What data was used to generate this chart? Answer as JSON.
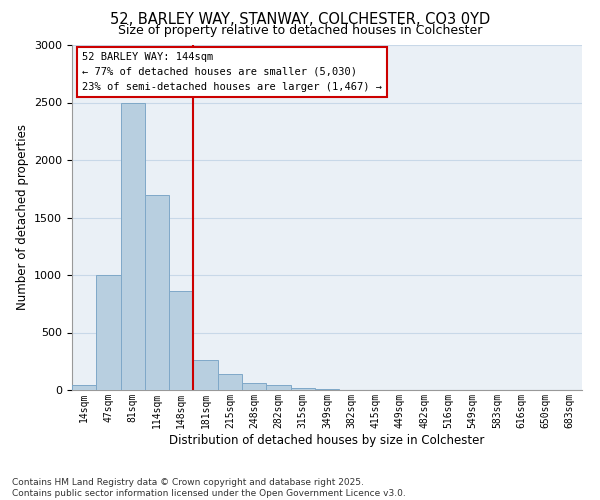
{
  "title_line1": "52, BARLEY WAY, STANWAY, COLCHESTER, CO3 0YD",
  "title_line2": "Size of property relative to detached houses in Colchester",
  "xlabel": "Distribution of detached houses by size in Colchester",
  "ylabel": "Number of detached properties",
  "categories": [
    "14sqm",
    "47sqm",
    "81sqm",
    "114sqm",
    "148sqm",
    "181sqm",
    "215sqm",
    "248sqm",
    "282sqm",
    "315sqm",
    "349sqm",
    "382sqm",
    "415sqm",
    "449sqm",
    "482sqm",
    "516sqm",
    "549sqm",
    "583sqm",
    "616sqm",
    "650sqm",
    "683sqm"
  ],
  "values": [
    40,
    1000,
    2500,
    1700,
    860,
    265,
    140,
    60,
    40,
    15,
    8,
    4,
    2,
    2,
    1,
    0,
    0,
    0,
    0,
    0,
    0
  ],
  "bar_color": "#b8cfe0",
  "bar_edge_color": "#7fa8c8",
  "vline_x": 4.5,
  "vline_color": "#cc0000",
  "annotation_text_line1": "52 BARLEY WAY: 144sqm",
  "annotation_text_line2": "← 77% of detached houses are smaller (5,030)",
  "annotation_text_line3": "23% of semi-detached houses are larger (1,467) →",
  "ylim": [
    0,
    3000
  ],
  "yticks": [
    0,
    500,
    1000,
    1500,
    2000,
    2500,
    3000
  ],
  "grid_color": "#c8d8e8",
  "plot_bg_color": "#eaf0f6",
  "footer_text": "Contains HM Land Registry data © Crown copyright and database right 2025.\nContains public sector information licensed under the Open Government Licence v3.0."
}
